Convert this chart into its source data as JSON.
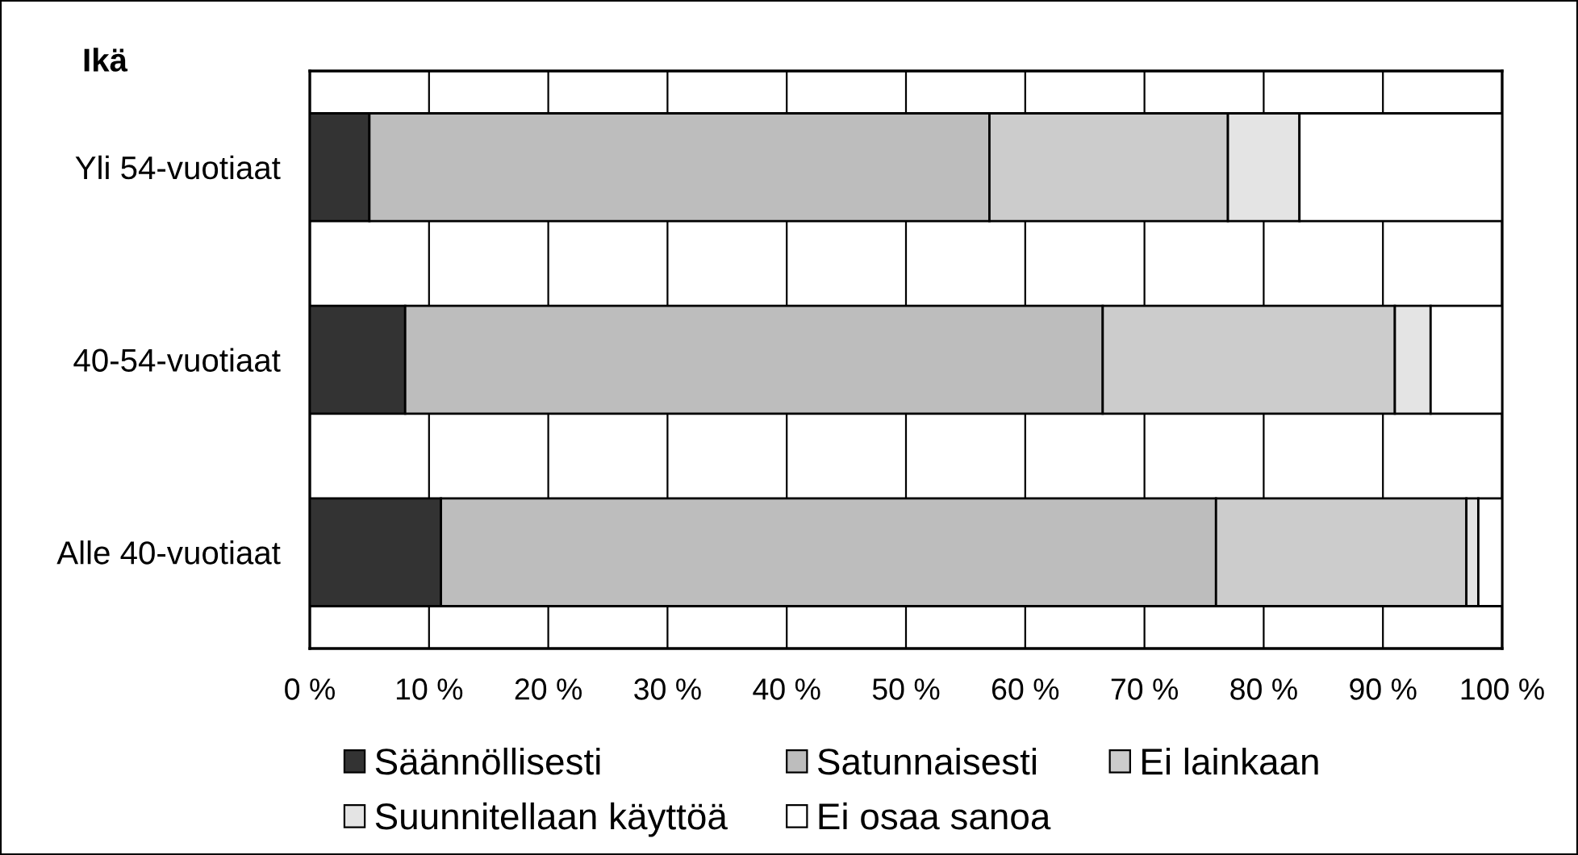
{
  "chart_data": {
    "type": "bar",
    "orientation": "horizontal",
    "stacked": true,
    "ylabel": "Ikä",
    "categories": [
      "Yli 54-vuotiaat",
      "40-54-vuotiaat",
      "Alle 40-vuotiaat"
    ],
    "series": [
      {
        "name": "Säännöllisesti",
        "color": "#333333",
        "values": [
          5,
          8,
          11
        ]
      },
      {
        "name": "Satunnaisesti",
        "color": "#bdbdbd",
        "values": [
          52,
          58.5,
          65
        ]
      },
      {
        "name": "Ei lainkaan",
        "color": "#cccccc",
        "values": [
          20,
          24.5,
          21
        ]
      },
      {
        "name": "Suunnitellaan käyttöä",
        "color": "#e4e4e4",
        "values": [
          6,
          3,
          1
        ]
      },
      {
        "name": "Ei osaa sanoa",
        "color": "#ffffff",
        "values": [
          17,
          6,
          2
        ]
      }
    ],
    "xlim": [
      0,
      100
    ],
    "xticks": [
      {
        "value": 0,
        "label": "0 %"
      },
      {
        "value": 10,
        "label": "10 %"
      },
      {
        "value": 20,
        "label": "20 %"
      },
      {
        "value": 30,
        "label": "30 %"
      },
      {
        "value": 40,
        "label": "40 %"
      },
      {
        "value": 50,
        "label": "50 %"
      },
      {
        "value": 60,
        "label": "60 %"
      },
      {
        "value": 70,
        "label": "70 %"
      },
      {
        "value": 80,
        "label": "80 %"
      },
      {
        "value": 90,
        "label": "90 %"
      },
      {
        "value": 100,
        "label": "100 %"
      }
    ],
    "grid": "x",
    "legend": "bottom"
  }
}
